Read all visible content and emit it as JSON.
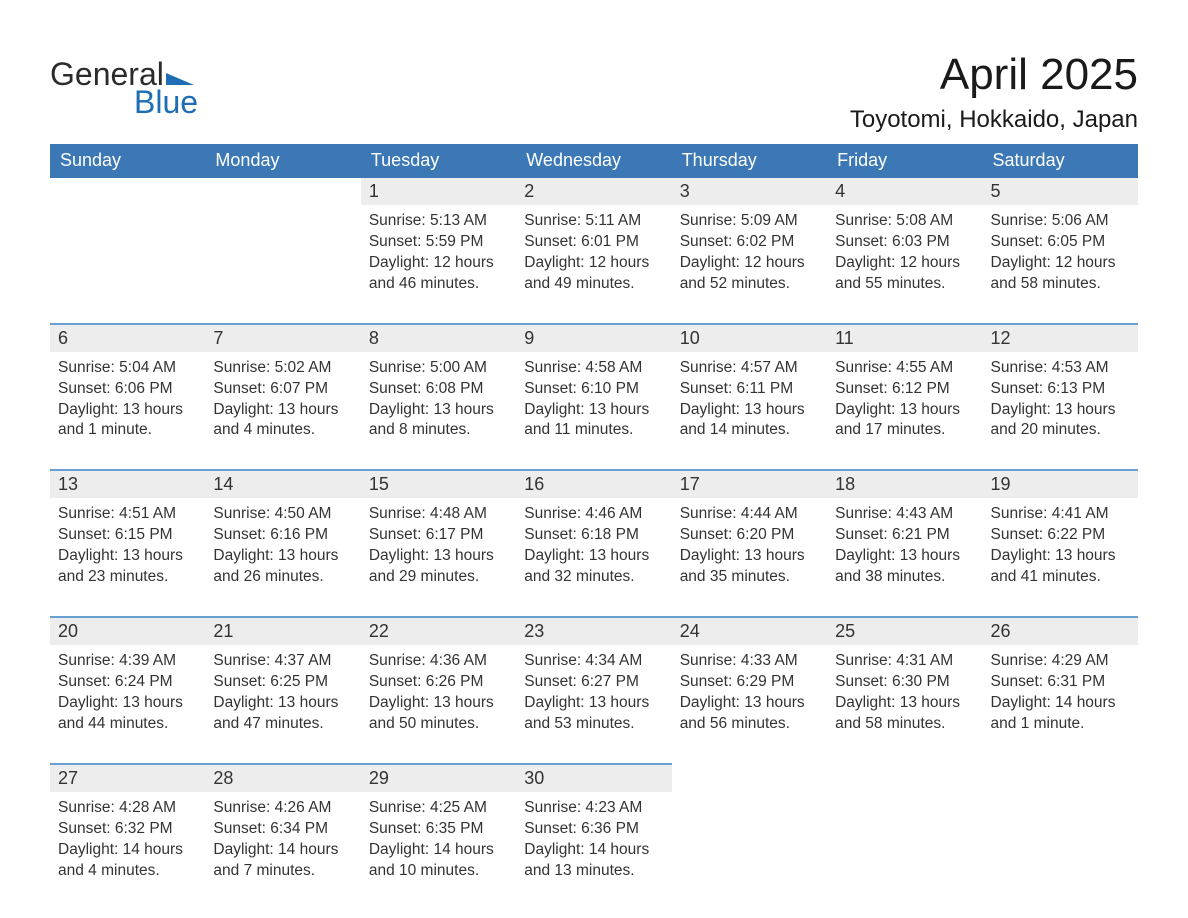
{
  "logo": {
    "text1": "General",
    "text2": "Blue"
  },
  "title": "April 2025",
  "location": "Toyotomi, Hokkaido, Japan",
  "colors": {
    "header_blue": "#3b78b5",
    "accent_blue": "#1e6db5",
    "day_bg": "#ededed",
    "divider": "#6a9fd4",
    "text": "#222222",
    "background": "#ffffff"
  },
  "daysOfWeek": [
    "Sunday",
    "Monday",
    "Tuesday",
    "Wednesday",
    "Thursday",
    "Friday",
    "Saturday"
  ],
  "weeks": [
    [
      null,
      null,
      {
        "n": "1",
        "sr": "5:13 AM",
        "ss": "5:59 PM",
        "dl": "12 hours and 46 minutes."
      },
      {
        "n": "2",
        "sr": "5:11 AM",
        "ss": "6:01 PM",
        "dl": "12 hours and 49 minutes."
      },
      {
        "n": "3",
        "sr": "5:09 AM",
        "ss": "6:02 PM",
        "dl": "12 hours and 52 minutes."
      },
      {
        "n": "4",
        "sr": "5:08 AM",
        "ss": "6:03 PM",
        "dl": "12 hours and 55 minutes."
      },
      {
        "n": "5",
        "sr": "5:06 AM",
        "ss": "6:05 PM",
        "dl": "12 hours and 58 minutes."
      }
    ],
    [
      {
        "n": "6",
        "sr": "5:04 AM",
        "ss": "6:06 PM",
        "dl": "13 hours and 1 minute."
      },
      {
        "n": "7",
        "sr": "5:02 AM",
        "ss": "6:07 PM",
        "dl": "13 hours and 4 minutes."
      },
      {
        "n": "8",
        "sr": "5:00 AM",
        "ss": "6:08 PM",
        "dl": "13 hours and 8 minutes."
      },
      {
        "n": "9",
        "sr": "4:58 AM",
        "ss": "6:10 PM",
        "dl": "13 hours and 11 minutes."
      },
      {
        "n": "10",
        "sr": "4:57 AM",
        "ss": "6:11 PM",
        "dl": "13 hours and 14 minutes."
      },
      {
        "n": "11",
        "sr": "4:55 AM",
        "ss": "6:12 PM",
        "dl": "13 hours and 17 minutes."
      },
      {
        "n": "12",
        "sr": "4:53 AM",
        "ss": "6:13 PM",
        "dl": "13 hours and 20 minutes."
      }
    ],
    [
      {
        "n": "13",
        "sr": "4:51 AM",
        "ss": "6:15 PM",
        "dl": "13 hours and 23 minutes."
      },
      {
        "n": "14",
        "sr": "4:50 AM",
        "ss": "6:16 PM",
        "dl": "13 hours and 26 minutes."
      },
      {
        "n": "15",
        "sr": "4:48 AM",
        "ss": "6:17 PM",
        "dl": "13 hours and 29 minutes."
      },
      {
        "n": "16",
        "sr": "4:46 AM",
        "ss": "6:18 PM",
        "dl": "13 hours and 32 minutes."
      },
      {
        "n": "17",
        "sr": "4:44 AM",
        "ss": "6:20 PM",
        "dl": "13 hours and 35 minutes."
      },
      {
        "n": "18",
        "sr": "4:43 AM",
        "ss": "6:21 PM",
        "dl": "13 hours and 38 minutes."
      },
      {
        "n": "19",
        "sr": "4:41 AM",
        "ss": "6:22 PM",
        "dl": "13 hours and 41 minutes."
      }
    ],
    [
      {
        "n": "20",
        "sr": "4:39 AM",
        "ss": "6:24 PM",
        "dl": "13 hours and 44 minutes."
      },
      {
        "n": "21",
        "sr": "4:37 AM",
        "ss": "6:25 PM",
        "dl": "13 hours and 47 minutes."
      },
      {
        "n": "22",
        "sr": "4:36 AM",
        "ss": "6:26 PM",
        "dl": "13 hours and 50 minutes."
      },
      {
        "n": "23",
        "sr": "4:34 AM",
        "ss": "6:27 PM",
        "dl": "13 hours and 53 minutes."
      },
      {
        "n": "24",
        "sr": "4:33 AM",
        "ss": "6:29 PM",
        "dl": "13 hours and 56 minutes."
      },
      {
        "n": "25",
        "sr": "4:31 AM",
        "ss": "6:30 PM",
        "dl": "13 hours and 58 minutes."
      },
      {
        "n": "26",
        "sr": "4:29 AM",
        "ss": "6:31 PM",
        "dl": "14 hours and 1 minute."
      }
    ],
    [
      {
        "n": "27",
        "sr": "4:28 AM",
        "ss": "6:32 PM",
        "dl": "14 hours and 4 minutes."
      },
      {
        "n": "28",
        "sr": "4:26 AM",
        "ss": "6:34 PM",
        "dl": "14 hours and 7 minutes."
      },
      {
        "n": "29",
        "sr": "4:25 AM",
        "ss": "6:35 PM",
        "dl": "14 hours and 10 minutes."
      },
      {
        "n": "30",
        "sr": "4:23 AM",
        "ss": "6:36 PM",
        "dl": "14 hours and 13 minutes."
      },
      null,
      null,
      null
    ]
  ],
  "labels": {
    "sunrise": "Sunrise: ",
    "sunset": "Sunset: ",
    "daylight": "Daylight: "
  }
}
